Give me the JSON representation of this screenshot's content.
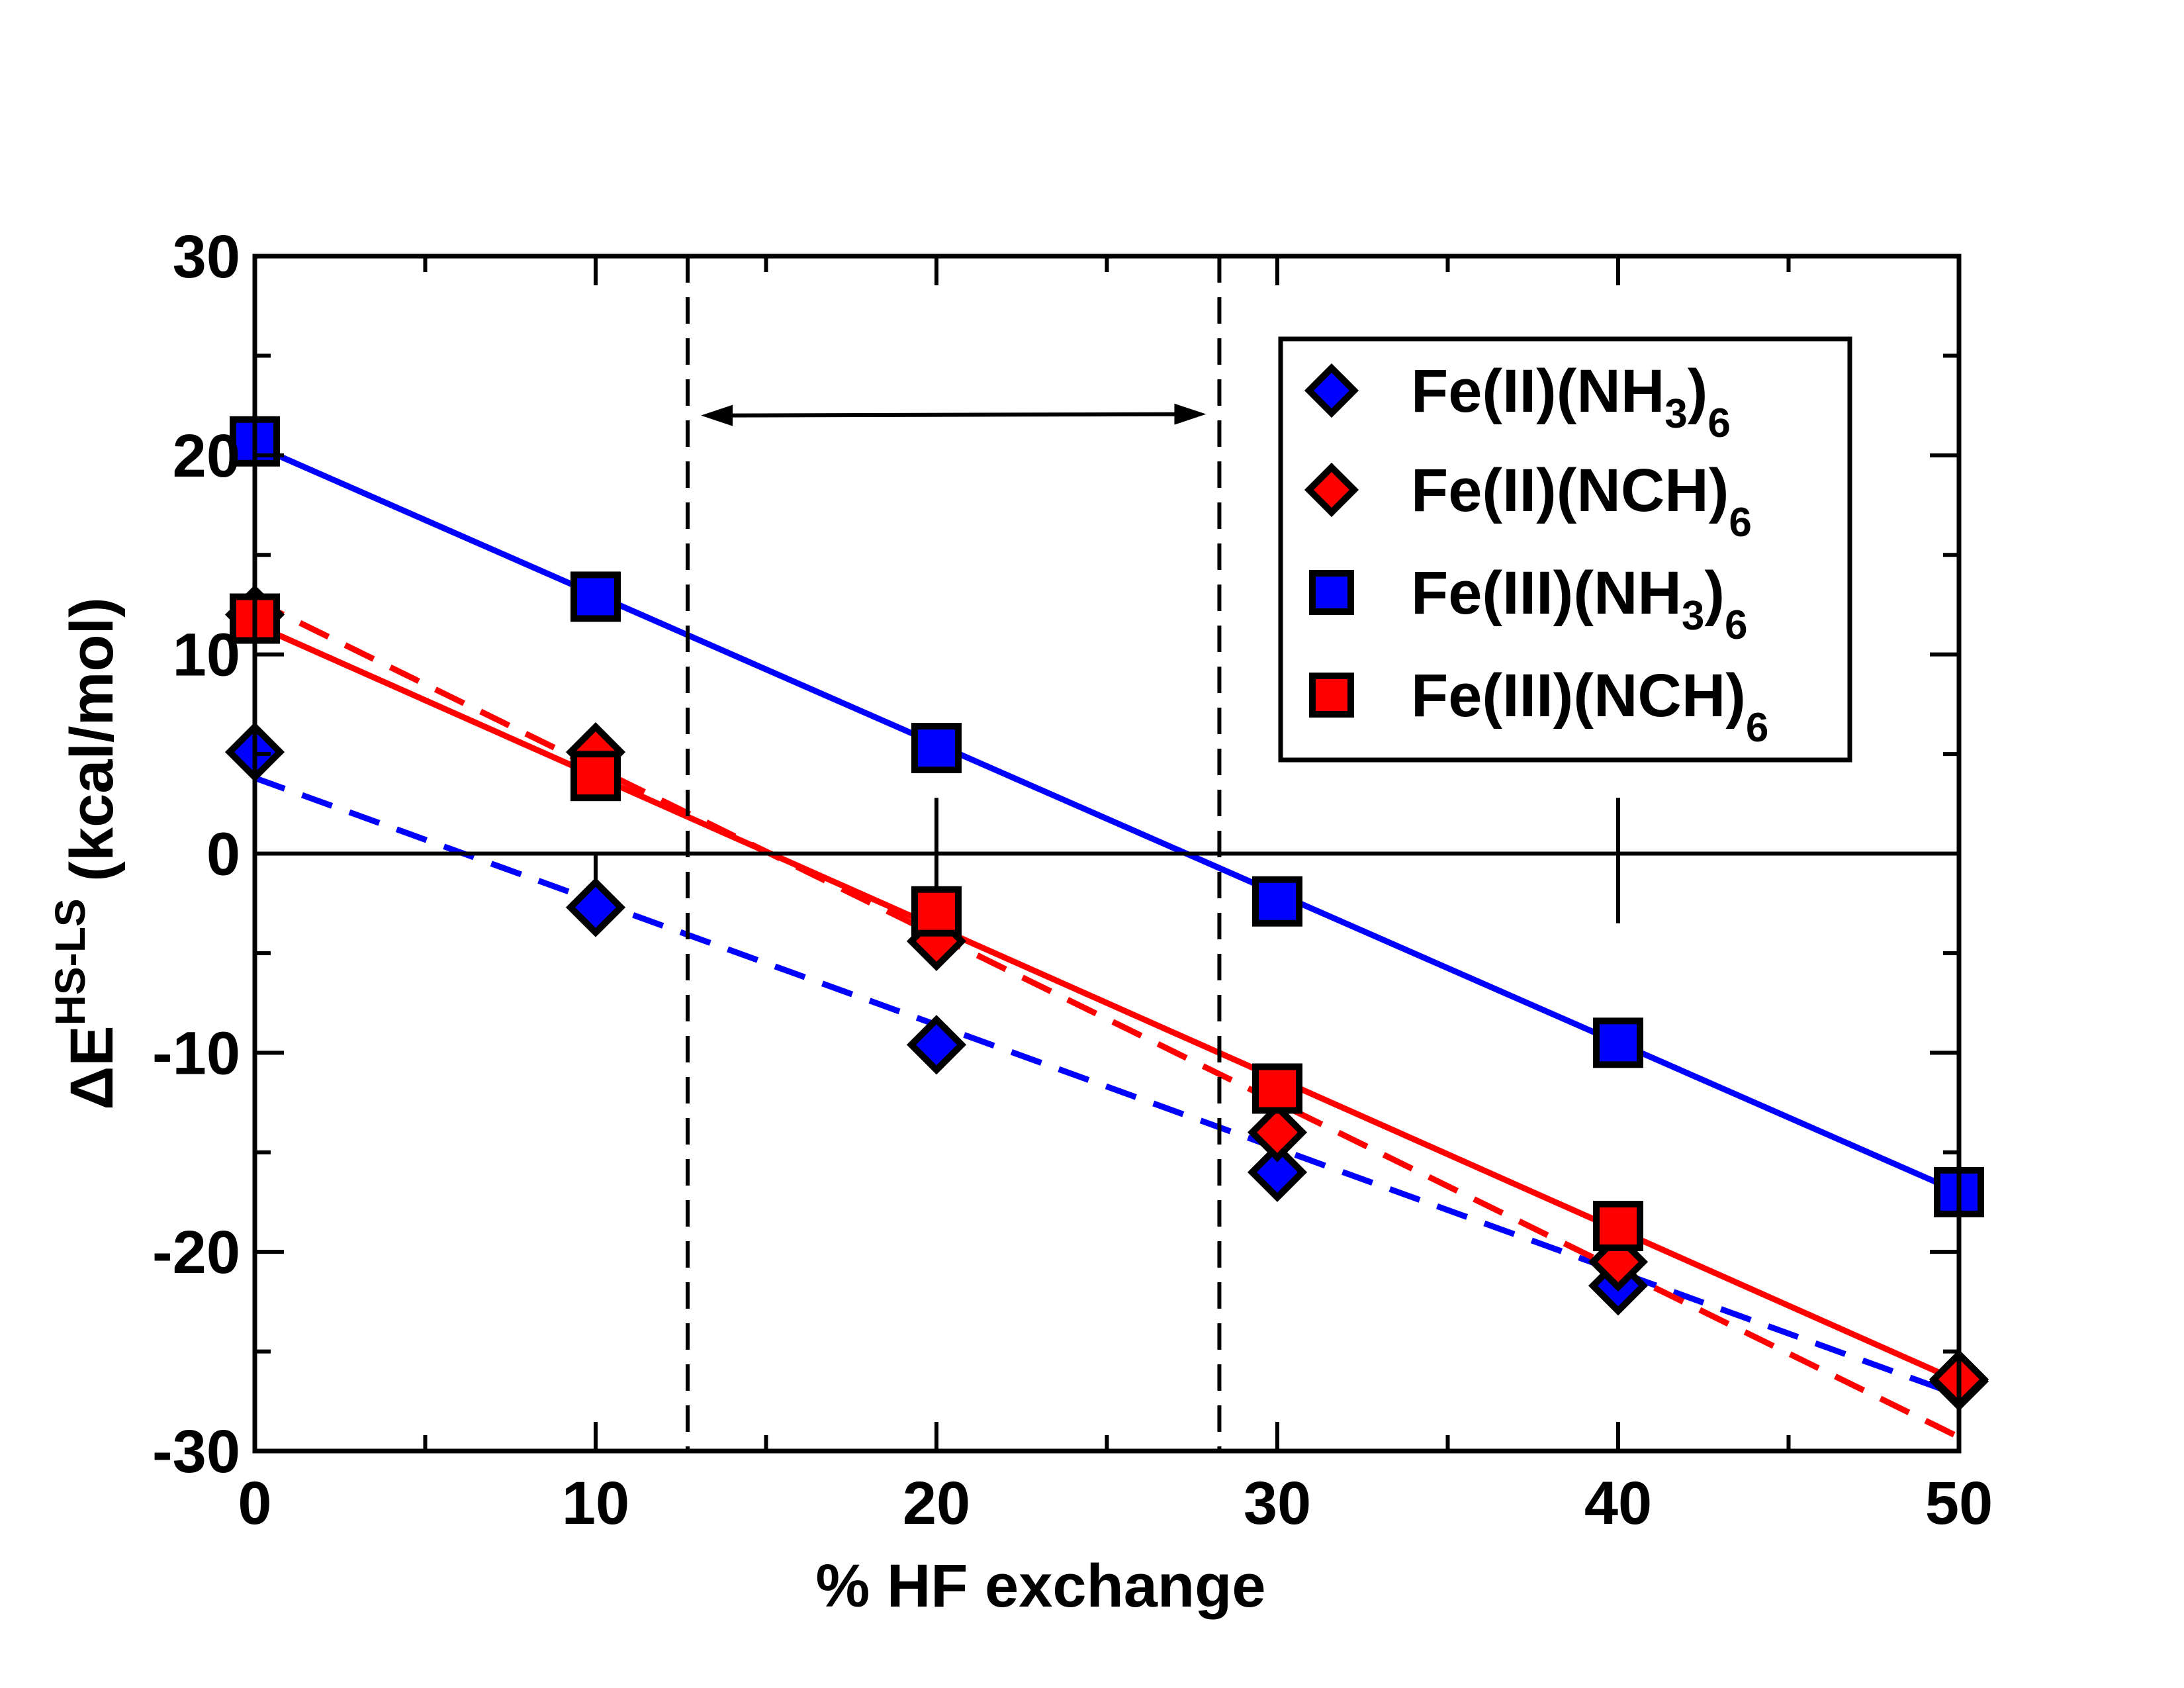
{
  "chart_data": {
    "type": "scatter",
    "xlabel": "% HF exchange",
    "ylabel": {
      "delta": "ΔE",
      "superscript": "HS-LS",
      "unit": "(kcal/mol)"
    },
    "xlim": [
      0,
      50
    ],
    "ylim": [
      -30,
      30
    ],
    "x_ticks": [
      0,
      10,
      20,
      30,
      40,
      50
    ],
    "y_ticks": [
      -30,
      -20,
      -10,
      0,
      10,
      20,
      30
    ],
    "x_tick_labels": [
      "0",
      "10",
      "20",
      "30",
      "40",
      "50"
    ],
    "y_tick_labels": [
      "-30",
      "-20",
      "-10",
      "0",
      "10",
      "20",
      "30"
    ],
    "legend_position": "top-right",
    "grid": false,
    "zero_line": true,
    "region_bounds": [
      12.7,
      28.3
    ],
    "region_arrow_y": 22,
    "series": [
      {
        "name": "Fe(II)(NH3)6",
        "label_main": "Fe(II)(NH",
        "label_sub1": "3",
        "label_mid": ")",
        "label_sub2": "6",
        "marker": "diamond",
        "color": "#0000ff",
        "x": [
          0,
          10,
          20,
          30,
          40,
          50
        ],
        "y": [
          5.1,
          -2.7,
          -9.6,
          -16.0,
          -21.7,
          -26.5
        ],
        "fit": {
          "style": "dashed",
          "intercept": 3.8,
          "slope": -0.62
        }
      },
      {
        "name": "Fe(II)(NCH)6",
        "label_main": "Fe(II)(NCH)",
        "label_sub1": "",
        "label_mid": "",
        "label_sub2": "6",
        "marker": "diamond",
        "color": "#ff0000",
        "x": [
          0,
          10,
          20,
          30,
          40,
          50
        ],
        "y": [
          12.0,
          5.1,
          -4.4,
          -14.0,
          -20.5,
          -26.4
        ],
        "fit": {
          "style": "dashed",
          "intercept": 12.7,
          "slope": -0.84
        }
      },
      {
        "name": "Fe(III)(NH3)6",
        "label_main": "Fe(III)(NH",
        "label_sub1": "3",
        "label_mid": ")",
        "label_sub2": "6",
        "marker": "square",
        "color": "#0000ff",
        "x": [
          0,
          10,
          20,
          30,
          40,
          50
        ],
        "y": [
          20.7,
          12.9,
          5.3,
          -2.4,
          -9.5,
          -17.0
        ],
        "fit": {
          "style": "solid",
          "intercept": 20.5,
          "slope": -0.75
        }
      },
      {
        "name": "Fe(III)(NCH)6",
        "label_main": "Fe(III)(NCH)",
        "label_sub1": "",
        "label_mid": "",
        "label_sub2": "6",
        "marker": "square",
        "color": "#ff0000",
        "x": [
          0,
          10,
          20,
          30,
          40
        ],
        "y": [
          11.8,
          3.9,
          -2.9,
          -11.8,
          -18.7
        ],
        "fit": {
          "style": "solid",
          "intercept": 11.5,
          "slope": -0.76
        }
      }
    ]
  }
}
